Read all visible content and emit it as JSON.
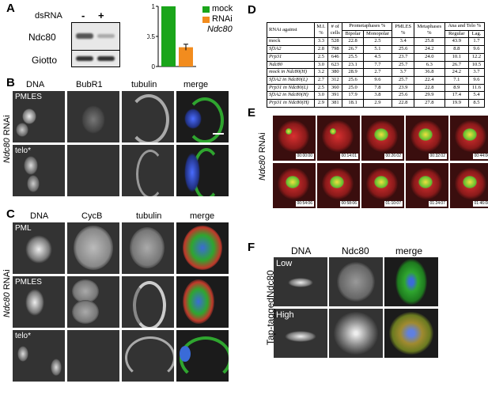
{
  "panels": {
    "A": {
      "label": "A",
      "dsrna_label": "dsRNA",
      "lanes": [
        "-",
        "+"
      ],
      "blots": [
        "Ndc80",
        "Giotto"
      ]
    },
    "B": {
      "label": "B",
      "columns": [
        "DNA",
        "BubR1",
        "tubulin",
        "merge"
      ],
      "rows": [
        "PMLES",
        "telo*"
      ],
      "side_label_italic": "Ndc80",
      "side_label_rest": " RNAi"
    },
    "C": {
      "label": "C",
      "columns": [
        "DNA",
        "CycB",
        "tubulin",
        "merge"
      ],
      "rows": [
        "PML",
        "PMLES",
        "telo*"
      ],
      "side_label_italic": "Ndc80",
      "side_label_rest": " RNAi"
    },
    "D": {
      "label": "D",
      "header": {
        "rnai": "RNAi against",
        "mi": "M.I.",
        "mi_unit": "%",
        "cells": "# of",
        "cells2": "cells",
        "prometa": "Prometaphases %",
        "bipolar": "Bipolar",
        "monopolar": "Monopolar",
        "pmles": "PMLES",
        "pmles_unit": "%",
        "meta": "Metaphases",
        "meta_unit": "%",
        "ana": "Ana and Telo %",
        "regular": "Regular",
        "lag": "Lag."
      },
      "rows": [
        {
          "name": "mock",
          "italic": false,
          "v": [
            "3.3",
            "528",
            "22.8",
            "2.5",
            "3.4",
            "25.8",
            "43.9",
            "1.7"
          ]
        },
        {
          "name": "Sf3A2",
          "italic": true,
          "v": [
            "2.8",
            "798",
            "26.7",
            "5.1",
            "25.6",
            "24.2",
            "8.8",
            "9.6"
          ]
        },
        {
          "name": "Prp31",
          "italic": true,
          "v": [
            "2.5",
            "646",
            "25.5",
            "4.5",
            "23.7",
            "24.0",
            "10.1",
            "12.2"
          ]
        },
        {
          "name": "Ndc80",
          "italic": true,
          "v": [
            "3.0",
            "623",
            "23.1",
            "7.7",
            "25.7",
            "6.3",
            "26.7",
            "10.5"
          ]
        },
        {
          "name": "mock in Ndc80(H)",
          "italic": true,
          "v": [
            "3.2",
            "380",
            "28.9",
            "2.7",
            "3.7",
            "36.8",
            "24.2",
            "3.7"
          ]
        },
        {
          "name": "Sf3A2 in Ndc80(L)",
          "italic": true,
          "v": [
            "2.7",
            "312",
            "25.6",
            "9.6",
            "25.7",
            "22.4",
            "7.1",
            "9.6"
          ]
        },
        {
          "name": "Prp31 in Ndc80(L)",
          "italic": true,
          "v": [
            "2.5",
            "360",
            "25.0",
            "7.8",
            "23.9",
            "22.8",
            "8.9",
            "11.6"
          ]
        },
        {
          "name": "Sf3A2 in Ndc80(H)",
          "italic": true,
          "v": [
            "3.0",
            "391",
            "17.9",
            "3.8",
            "25.6",
            "29.9",
            "17.4",
            "5.4"
          ]
        },
        {
          "name": "Prp31 in Ndc80(H)",
          "italic": true,
          "v": [
            "2.9",
            "381",
            "18.1",
            "2.9",
            "22.8",
            "27.8",
            "19.9",
            "8.5"
          ]
        }
      ]
    },
    "E": {
      "label": "E",
      "side_label_italic": "Ndc80",
      "side_label_rest": " RNAi",
      "timestamps": [
        "00:00:00",
        "00:14:01",
        "00:26:02",
        "00:32:02",
        "00:44:06",
        "00:54:06",
        "00:58:06",
        "01:10:07",
        "01:24:07",
        "01:46:08"
      ]
    },
    "F": {
      "label": "F",
      "columns": [
        "DNA",
        "Ndc80",
        "merge"
      ],
      "rows": [
        "Low",
        "High"
      ],
      "side_label": "Tap-taggedNdc80"
    }
  },
  "chart_data": {
    "type": "bar",
    "categories": [
      "mock",
      "RNAi Ndc80"
    ],
    "values": [
      1.0,
      0.32
    ],
    "error": [
      0,
      0.05
    ],
    "ylim": [
      0,
      1
    ],
    "yticks": [
      "0",
      "0.5",
      "1"
    ],
    "legend": [
      {
        "name": "mock",
        "color": "#1aa51a"
      },
      {
        "name": "RNAi",
        "name2": "Ndc80",
        "color": "#f28c1e"
      }
    ],
    "legend_position": "right"
  }
}
